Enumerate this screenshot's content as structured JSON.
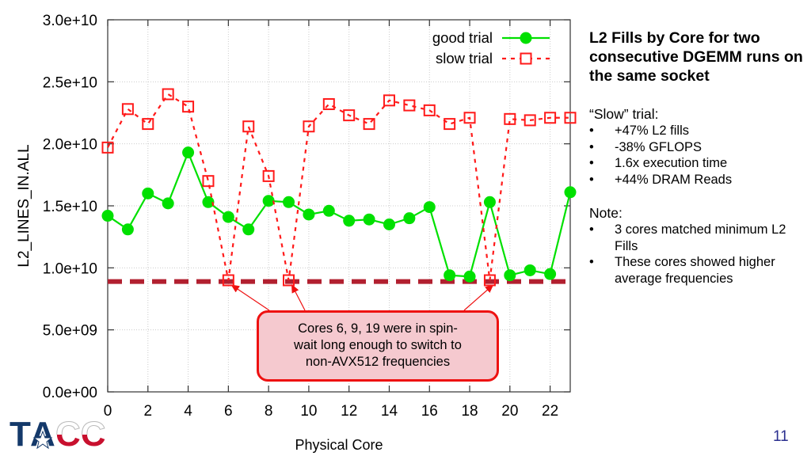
{
  "chart_data": {
    "type": "line",
    "title": "",
    "xlabel": "Physical Core",
    "ylabel": "L2_LINES_IN.ALL",
    "xlim": [
      0,
      23
    ],
    "ylim": [
      0,
      30000000000
    ],
    "x_ticks": [
      0,
      2,
      4,
      6,
      8,
      10,
      12,
      14,
      16,
      18,
      20,
      22
    ],
    "x_tick_labels": [
      "0",
      "2",
      "4",
      "6",
      "8",
      "10",
      "12",
      "14",
      "16",
      "18",
      "20",
      "22"
    ],
    "y_ticks": [
      0,
      5000000000,
      10000000000,
      15000000000,
      20000000000,
      25000000000,
      30000000000
    ],
    "y_tick_labels": [
      "0.0e+00",
      "5.0e+09",
      "1.0e+10",
      "1.5e+10",
      "2.0e+10",
      "2.5e+10",
      "3.0e+10"
    ],
    "grid": true,
    "legend_position": "top-right",
    "x": [
      0,
      1,
      2,
      3,
      4,
      5,
      6,
      7,
      8,
      9,
      10,
      11,
      12,
      13,
      14,
      15,
      16,
      17,
      18,
      19,
      20,
      21,
      22,
      23
    ],
    "series": [
      {
        "name": "good trial",
        "color": "#00e000",
        "style": "solid",
        "marker": "filled-circle",
        "values": [
          14200000000.0,
          13100000000.0,
          16000000000.0,
          15200000000.0,
          19300000000.0,
          15300000000.0,
          14100000000.0,
          13100000000.0,
          15400000000.0,
          15300000000.0,
          14300000000.0,
          14600000000.0,
          13800000000.0,
          13900000000.0,
          13500000000.0,
          14000000000.0,
          14900000000.0,
          9400000000.0,
          9300000000.0,
          15300000000.0,
          9400000000.0,
          9800000000.0,
          9500000000.0,
          16100000000.0
        ]
      },
      {
        "name": "slow trial",
        "color": "#ff1a1a",
        "style": "dashed",
        "marker": "open-square",
        "values": [
          19700000000.0,
          22800000000.0,
          21600000000.0,
          24000000000.0,
          23000000000.0,
          17000000000.0,
          9000000000.0,
          21400000000.0,
          17400000000.0,
          9000000000.0,
          21400000000.0,
          23200000000.0,
          22300000000.0,
          21600000000.0,
          23500000000.0,
          23100000000.0,
          22700000000.0,
          21600000000.0,
          22100000000.0,
          9000000000.0,
          22000000000.0,
          21900000000.0,
          22100000000.0,
          22100000000.0
        ]
      }
    ],
    "reference_line": {
      "label": "minimum L2 fills",
      "value": 8900000000.0,
      "color": "#b22030",
      "style": "dashed-thick"
    },
    "annotation": {
      "text_lines": [
        "Cores 6, 9, 19 were in spin-",
        "wait long enough to switch to",
        "non-AVX512 frequencies"
      ],
      "points_to_cores": [
        6,
        9,
        19
      ],
      "fill": "#f5c9cf",
      "border": "#ee1111"
    }
  },
  "side": {
    "title": "L2 Fills by Core for two consecutive DGEMM runs on the same socket",
    "slow_heading": "“Slow” trial:",
    "slow_items": [
      "+47% L2 fills",
      "-38% GFLOPS",
      "1.6x execution time",
      "+44% DRAM Reads"
    ],
    "note_heading": "Note:",
    "note_items": [
      "3 cores matched minimum L2 Fills",
      "These cores showed higher average frequencies"
    ],
    "bullet": "•"
  },
  "logo": {
    "text": "TACC",
    "colors": {
      "blue": "#14396a",
      "red": "#c8102e"
    }
  },
  "page_number": "11"
}
